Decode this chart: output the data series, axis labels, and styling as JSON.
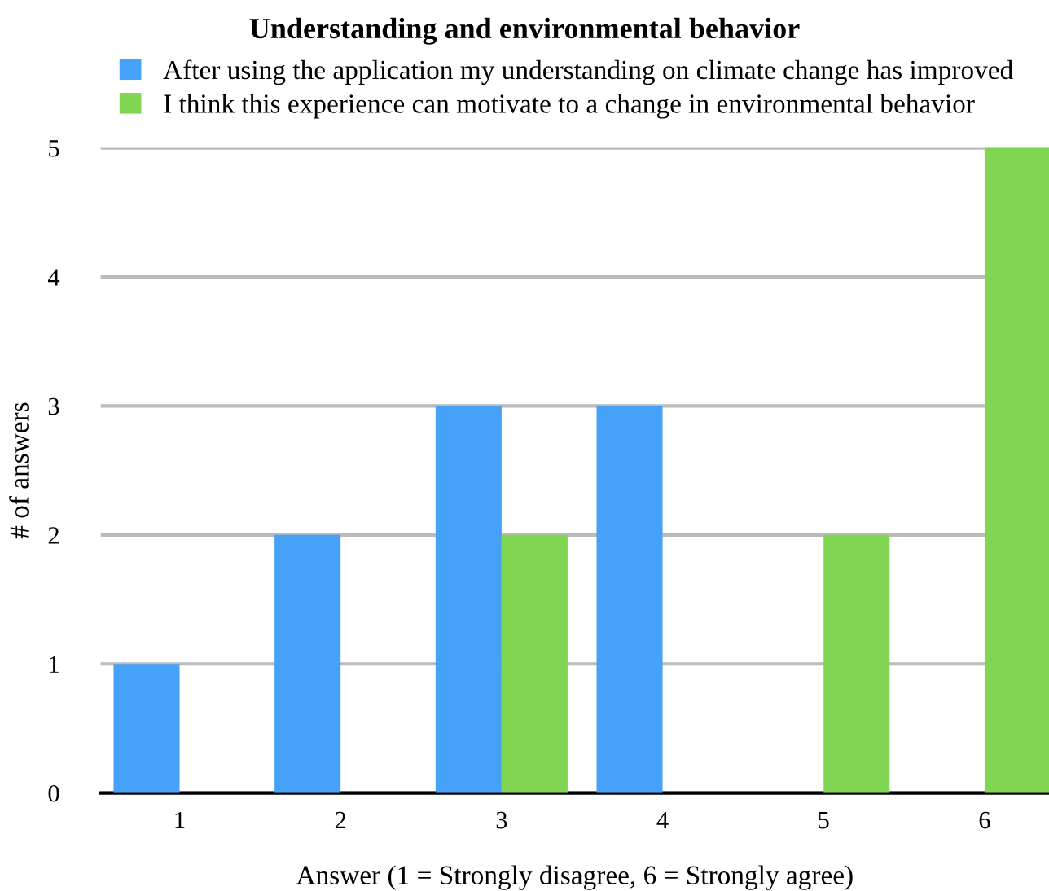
{
  "chart_data": {
    "type": "bar",
    "title": "Understanding and environmental behavior",
    "categories": [
      "1",
      "2",
      "3",
      "4",
      "5",
      "6"
    ],
    "series": [
      {
        "name": "After using the application my understanding on climate change has improved",
        "color": "#45a2f8",
        "values": [
          1,
          2,
          3,
          3,
          0,
          0
        ]
      },
      {
        "name": "I think this experience can motivate to a change in environmental behavior",
        "color": "#80d653",
        "values": [
          0,
          0,
          2,
          0,
          2,
          5
        ]
      }
    ],
    "xlabel": "Answer (1 = Strongly disagree, 6 = Strongly agree)",
    "ylabel": "# of answers",
    "ylim": [
      0,
      5
    ],
    "yticks": [
      0,
      1,
      2,
      3,
      4,
      5
    ],
    "grid": "y",
    "legend": "top"
  }
}
